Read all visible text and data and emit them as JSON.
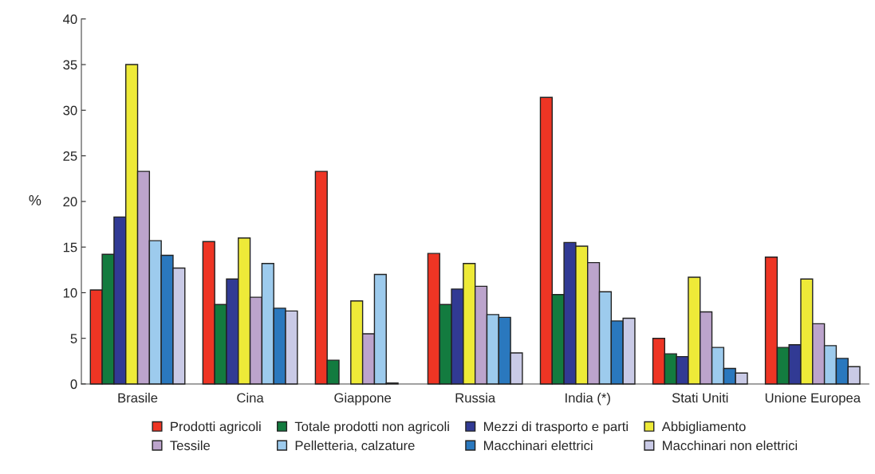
{
  "chart_data": {
    "type": "bar",
    "ylabel": "%",
    "categories": [
      "Brasile",
      "Cina",
      "Giappone",
      "Russia",
      "India (*)",
      "Stati Uniti",
      "Unione Europea"
    ],
    "series": [
      {
        "name": "Prodotti agricoli",
        "color": "#ee3524",
        "values": [
          10.3,
          15.6,
          23.3,
          14.3,
          31.4,
          5.0,
          13.9
        ]
      },
      {
        "name": "Totale prodotti non agricoli",
        "color": "#137b3f",
        "values": [
          14.2,
          8.7,
          2.6,
          8.7,
          9.8,
          3.3,
          4.0
        ]
      },
      {
        "name": "Mezzi di trasporto e parti",
        "color": "#313a94",
        "values": [
          18.3,
          11.5,
          null,
          10.4,
          15.5,
          3.0,
          4.3
        ]
      },
      {
        "name": "Abbigliamento",
        "color": "#eeea38",
        "values": [
          35.0,
          16.0,
          9.1,
          13.2,
          15.1,
          11.7,
          11.5
        ]
      },
      {
        "name": "Tessile",
        "color": "#bca4cc",
        "values": [
          23.3,
          9.5,
          5.5,
          10.7,
          13.3,
          7.9,
          6.6
        ]
      },
      {
        "name": "Pelletteria, calzature",
        "color": "#9dcbed",
        "values": [
          15.7,
          13.2,
          12.0,
          7.6,
          10.1,
          4.0,
          4.2
        ]
      },
      {
        "name": "Macchinari elettrici",
        "color": "#2a78be",
        "values": [
          14.1,
          8.3,
          0.1,
          7.3,
          6.9,
          1.7,
          2.8
        ]
      },
      {
        "name": "Macchinari non elettrici",
        "color": "#c9cae6",
        "values": [
          12.7,
          8.0,
          null,
          3.4,
          7.2,
          1.2,
          1.9
        ]
      }
    ],
    "ylim": [
      0,
      40
    ],
    "yticks": [
      0,
      5,
      10,
      15,
      20,
      25,
      30,
      35,
      40
    ],
    "grid": false,
    "legend": "bottom"
  }
}
